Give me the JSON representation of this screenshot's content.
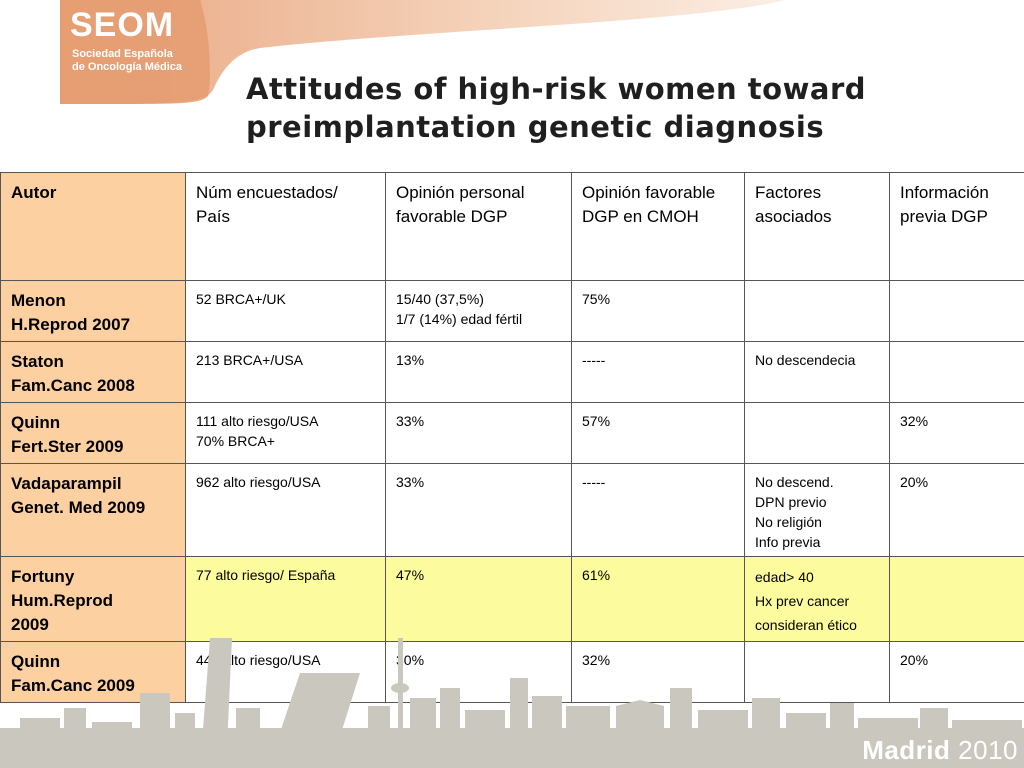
{
  "logo": {
    "name": "SEOM",
    "subtitle_line1": "Sociedad Española",
    "subtitle_line2": "de Oncología Médica"
  },
  "title": "Attitudes of high-risk women toward preimplantation genetic diagnosis",
  "table": {
    "headers": [
      "Autor",
      "Núm encuestados/ País",
      "Opinión personal favorable DGP",
      "Opinión favorable DGP en CMOH",
      "Factores asociados",
      "Información previa DGP"
    ],
    "rows": [
      {
        "author_line1": "Menon",
        "author_line2": "H.Reprod 2007",
        "author_line3": "",
        "num_line1": "52 BRCA+/UK",
        "num_line2": "",
        "personal_line1": "15/40 (37,5%)",
        "personal_line2": "1/7 (14%) edad fértil",
        "cmoh": "75%",
        "factors": [],
        "info": ""
      },
      {
        "author_line1": "Staton",
        "author_line2": "Fam.Canc 2008",
        "author_line3": "",
        "num_line1": "213 BRCA+/USA",
        "num_line2": "",
        "personal_line1": "13%",
        "personal_line2": "",
        "cmoh": "-----",
        "factors": [
          "No descendecia"
        ],
        "info": ""
      },
      {
        "author_line1": "Quinn",
        "author_line2": "Fert.Ster 2009",
        "author_line3": "",
        "num_line1": "111 alto riesgo/USA",
        "num_line2": "70% BRCA+",
        "personal_line1": "33%",
        "personal_line2": "",
        "cmoh": "57%",
        "factors": [],
        "info": "32%"
      },
      {
        "author_line1": "Vadaparampil",
        "author_line2": "Genet. Med 2009",
        "author_line3": "",
        "num_line1": "962 alto riesgo/USA",
        "num_line2": "",
        "personal_line1": "33%",
        "personal_line2": "",
        "cmoh": "-----",
        "factors": [
          "No descend.",
          "DPN previo",
          "No religión",
          "Info previa"
        ],
        "info": "20%"
      },
      {
        "author_line1": "Fortuny",
        "author_line2": "Hum.Reprod",
        "author_line3": "2009",
        "num_line1": "77 alto riesgo/ España",
        "num_line2": "",
        "personal_line1": "47%",
        "personal_line2": "",
        "cmoh": "61%",
        "factors": [
          "edad> 40",
          "Hx prev cancer",
          "consideran ético"
        ],
        "info": ""
      },
      {
        "author_line1": "Quinn",
        "author_line2": "Fam.Canc 2009",
        "author_line3": "",
        "num_line1": "446 alto riesgo/USA",
        "num_line2": "",
        "personal_line1": "30%",
        "personal_line2": "",
        "cmoh": "32%",
        "factors": [],
        "info": "20%"
      }
    ]
  },
  "footer": {
    "city": "Madrid",
    "year": "2010"
  },
  "colors": {
    "author_column": "#fdd0a2",
    "highlight_row": "#fcfc9e",
    "header_band": "#f3c7a6",
    "skyline": "#c9c7be"
  }
}
